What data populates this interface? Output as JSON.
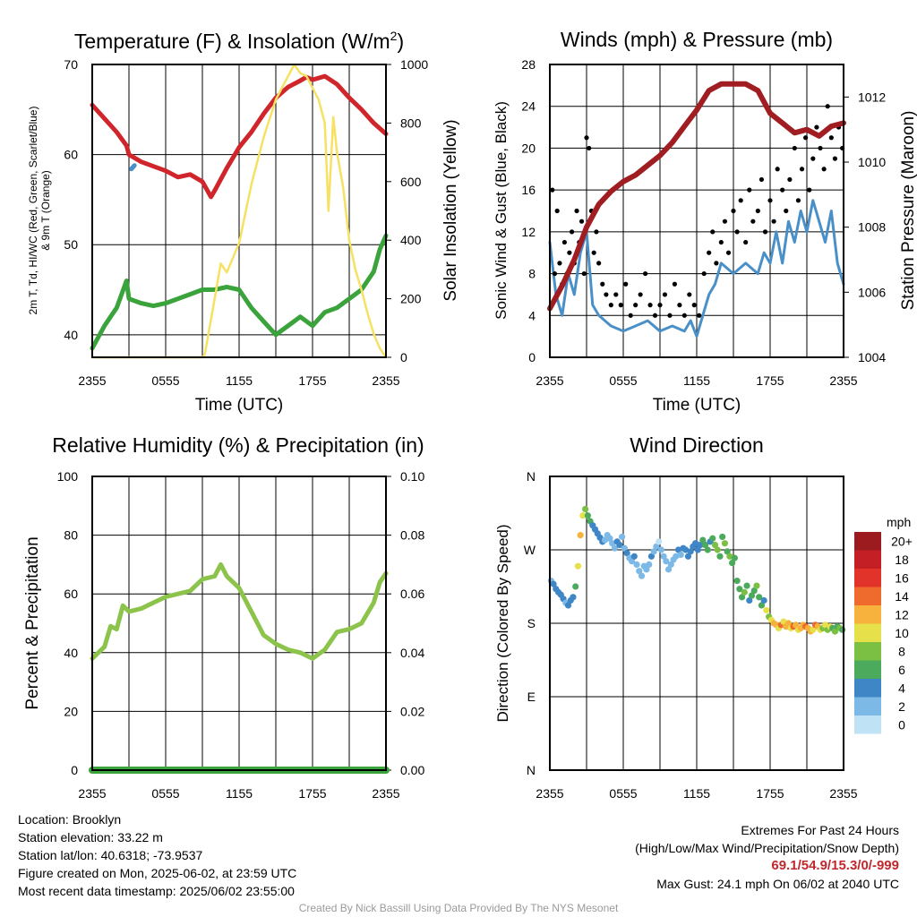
{
  "panels": {
    "temperature": {
      "title_main": "Temperature (F) & Insolation (W/m",
      "title_sup": "2",
      "title_end": ")",
      "ylabel_line1": "2m T, Td, HI/WC (Red, Green, Scarlet/Blue)",
      "ylabel_line2": "& 9m T (Orange)",
      "y2label": "Solar Insolation (Yellow)",
      "xlabel": "Time (UTC)"
    },
    "winds": {
      "title": "Winds (mph) & Pressure (mb)",
      "ylabel": "Sonic Wind & Gust (Blue, Black)",
      "y2label": "Station Pressure (Maroon)",
      "xlabel": "Time (UTC)"
    },
    "humidity": {
      "title": "Relative Humidity (%) & Precipitation (in)",
      "ylabel": "Percent & Precipitation"
    },
    "direction": {
      "title": "Wind Direction",
      "ylabel": "Direction (Colored By Speed)",
      "colorbar_title": "mph"
    }
  },
  "footer": {
    "location": "Location: Brooklyn",
    "elevation": "Station elevation: 33.22 m",
    "latlon": "Station lat/lon: 40.6318; -73.9537",
    "created": "Figure created on Mon, 2025-06-02, at 23:59 UTC",
    "recent": "Most recent data timestamp: 2025/06/02 23:55:00",
    "extremes_title": "Extremes For Past 24 Hours",
    "extremes_sub": "(High/Low/Max Wind/Precipitation/Snow Depth)",
    "extremes_values": "69.1/54.9/15.3/0/-999",
    "max_gust": "Max Gust: 24.1 mph On 06/02 at 2040 UTC",
    "credit": "Created By Nick Bassill Using Data Provided By The NYS Mesonet"
  },
  "colors": {
    "temperature": "#d0252b",
    "dewpoint": "#3aa33c",
    "heat_index_wc": "#4a90c8",
    "insolation": "#f7e163",
    "wind": "#4a90c8",
    "gust": "#000000",
    "pressure": "#a01e22",
    "humidity": "#8cc34a",
    "precip": "#3aa33c"
  },
  "chart_data": [
    {
      "id": "temperature",
      "type": "line",
      "x_ticks": [
        "2355",
        "0555",
        "1155",
        "1755",
        "2355"
      ],
      "x_hours": [
        0,
        24
      ],
      "ylim": [
        37.5,
        70
      ],
      "y_ticks": [
        40,
        50,
        60,
        70
      ],
      "y2lim": [
        0,
        1000
      ],
      "y2_ticks": [
        0,
        200,
        400,
        600,
        800,
        1000
      ],
      "series": [
        {
          "key": "temperature",
          "axis": "left",
          "x": [
            0,
            1,
            2,
            2.8,
            3,
            4,
            5,
            6,
            7,
            8,
            9,
            9.7,
            10,
            11,
            12,
            13,
            14,
            15,
            16,
            17,
            17.5,
            18,
            19,
            20,
            21,
            22,
            23,
            24
          ],
          "y": [
            65.5,
            64,
            62.5,
            61,
            60,
            59.2,
            58.7,
            58.2,
            57.5,
            57.8,
            57,
            55.3,
            56,
            58.5,
            60.8,
            62.5,
            64.5,
            66.3,
            67.5,
            68.2,
            68.6,
            68.3,
            68.7,
            67.8,
            66.3,
            65,
            63.5,
            62.3
          ]
        },
        {
          "key": "heat_index_wc",
          "axis": "left",
          "x": [
            3.2,
            3.45
          ],
          "y": [
            58.4,
            58.8
          ]
        },
        {
          "key": "dewpoint",
          "axis": "left",
          "x": [
            0,
            1,
            2,
            2.8,
            3,
            4,
            5,
            6,
            7,
            8,
            9,
            10,
            11,
            12,
            13,
            14,
            15,
            16,
            17,
            18,
            19,
            20,
            21,
            22,
            23,
            23.5,
            24
          ],
          "y": [
            38.5,
            41,
            43,
            46,
            44,
            43.5,
            43.2,
            43.5,
            44,
            44.5,
            45,
            45,
            45.3,
            45,
            43,
            41.5,
            40,
            41,
            42,
            41,
            42.5,
            43,
            44,
            45,
            47,
            49.5,
            51
          ]
        },
        {
          "key": "insolation",
          "axis": "right",
          "x": [
            0,
            1,
            2,
            3,
            4,
            5,
            6,
            7,
            8,
            9,
            9.2,
            10,
            10.5,
            11,
            12,
            13,
            14,
            15,
            15.5,
            16,
            16.5,
            17,
            17.5,
            18,
            18.5,
            19,
            19.3,
            19.7,
            20,
            20.5,
            21,
            21.5,
            22,
            22.5,
            23,
            23.5,
            24
          ],
          "y": [
            0,
            0,
            0,
            0,
            0,
            0,
            0,
            0,
            0,
            0,
            10,
            200,
            320,
            290,
            390,
            590,
            750,
            880,
            920,
            960,
            1000,
            970,
            960,
            920,
            880,
            800,
            500,
            820,
            700,
            580,
            400,
            300,
            230,
            150,
            80,
            30,
            0
          ]
        }
      ]
    },
    {
      "id": "winds",
      "type": "line",
      "x_ticks": [
        "2355",
        "0555",
        "1155",
        "1755",
        "2355"
      ],
      "x_hours": [
        0,
        24
      ],
      "ylim": [
        0,
        28
      ],
      "y_ticks": [
        0,
        4,
        8,
        12,
        16,
        20,
        24,
        28
      ],
      "y2lim": [
        1004,
        1013
      ],
      "y2_ticks": [
        1004,
        1006,
        1008,
        1010,
        1012
      ],
      "series": [
        {
          "key": "wind",
          "axis": "left",
          "x": [
            0,
            0.5,
            1,
            1.5,
            2,
            2.5,
            3,
            3.5,
            4,
            5,
            6,
            7,
            8,
            9,
            10,
            11,
            11.5,
            12,
            12.5,
            13,
            13.5,
            14,
            15,
            16,
            17,
            17.5,
            18,
            18.5,
            19,
            19.5,
            20,
            20.5,
            21,
            21.5,
            22,
            22.5,
            23,
            23.5,
            24
          ],
          "y": [
            11,
            6,
            4,
            8,
            6,
            10,
            12,
            5,
            4,
            3,
            2.5,
            3,
            3.5,
            2.5,
            3,
            2.5,
            3.5,
            2,
            4,
            6,
            7,
            9,
            8,
            9,
            8,
            10,
            9,
            12,
            9,
            13,
            11,
            14,
            12,
            15,
            13,
            11,
            14,
            9,
            7
          ]
        },
        {
          "key": "gust",
          "axis": "left",
          "mode": "dots",
          "x": [
            0.2,
            0.4,
            0.6,
            0.8,
            1.0,
            1.2,
            1.4,
            1.6,
            1.8,
            2.0,
            2.2,
            2.4,
            2.6,
            2.8,
            3.0,
            3.2,
            3.4,
            3.6,
            3.8,
            4.0,
            4.3,
            4.6,
            5.0,
            5.4,
            5.8,
            6.2,
            6.6,
            7.0,
            7.4,
            7.8,
            8.2,
            8.6,
            9.0,
            9.4,
            9.8,
            10.2,
            10.6,
            11.0,
            11.4,
            11.8,
            12.2,
            12.6,
            13.0,
            13.3,
            13.6,
            14.0,
            14.3,
            14.6,
            15.0,
            15.3,
            15.6,
            16.0,
            16.3,
            16.6,
            17.0,
            17.3,
            17.6,
            18.0,
            18.3,
            18.6,
            19.0,
            19.3,
            19.6,
            20.0,
            20.3,
            20.6,
            20.9,
            21.2,
            21.5,
            21.8,
            22.1,
            22.4,
            22.7,
            23.0,
            23.3,
            23.6,
            23.9
          ],
          "y": [
            16,
            8,
            14,
            9,
            7,
            11,
            8,
            10,
            12,
            9,
            14,
            11,
            13,
            8,
            21,
            20,
            14,
            10,
            12,
            9,
            7,
            6,
            5,
            6,
            5,
            7,
            4,
            5,
            6,
            8,
            5,
            4,
            5,
            6,
            4,
            7,
            5,
            4,
            6,
            5,
            4,
            8,
            10,
            12,
            9,
            11,
            13,
            10,
            14,
            12,
            15,
            11,
            16,
            13,
            14,
            17,
            12,
            15,
            13,
            18,
            16,
            14,
            17,
            20,
            15,
            18,
            21,
            16,
            19,
            22,
            20,
            18,
            24,
            21,
            19,
            22,
            20
          ]
        },
        {
          "key": "pressure",
          "axis": "right",
          "x": [
            0,
            1,
            2,
            3,
            4,
            5,
            6,
            7,
            8,
            9,
            10,
            11,
            12,
            13,
            14,
            15,
            16,
            17,
            18,
            19,
            20,
            21,
            22,
            23,
            24
          ],
          "y": [
            1005.5,
            1006.2,
            1007,
            1008,
            1008.7,
            1009.1,
            1009.4,
            1009.6,
            1009.9,
            1010.2,
            1010.6,
            1011.1,
            1011.6,
            1012.2,
            1012.4,
            1012.4,
            1012.4,
            1012.2,
            1011.5,
            1011.2,
            1010.9,
            1011.0,
            1010.8,
            1011.1,
            1011.2
          ]
        }
      ]
    },
    {
      "id": "humidity",
      "type": "line",
      "x_ticks": [
        "2355",
        "0555",
        "1155",
        "1755",
        "2355"
      ],
      "x_hours": [
        0,
        24
      ],
      "ylim": [
        0,
        100
      ],
      "y_ticks": [
        0,
        20,
        40,
        60,
        80,
        100
      ],
      "y2lim": [
        0,
        0.1
      ],
      "y2_ticks": [
        "0.00",
        "0.02",
        "0.04",
        "0.06",
        "0.08",
        "0.10"
      ],
      "series": [
        {
          "key": "humidity",
          "axis": "left",
          "x": [
            0,
            1,
            1.5,
            2,
            2.5,
            3,
            4,
            5,
            6,
            7,
            8,
            9,
            10,
            10.5,
            11,
            12,
            13,
            14,
            15,
            16,
            17,
            18,
            19,
            20,
            21,
            22,
            23,
            23.5,
            24
          ],
          "y": [
            38,
            42,
            49,
            48,
            56,
            54,
            55,
            57,
            59,
            60,
            61,
            65,
            66,
            70,
            66,
            62,
            54,
            46,
            43,
            41,
            40,
            38,
            41,
            47,
            48,
            50,
            57,
            64,
            67
          ]
        },
        {
          "key": "precip",
          "axis": "right",
          "x": [
            0,
            24
          ],
          "y": [
            0,
            0
          ]
        }
      ]
    },
    {
      "id": "direction",
      "type": "scatter",
      "x_ticks": [
        "2355",
        "0555",
        "1155",
        "1755",
        "2355"
      ],
      "x_hours": [
        0,
        24
      ],
      "y_labels": [
        "N",
        "E",
        "S",
        "W",
        "N"
      ],
      "ylim": [
        0,
        360
      ],
      "colorbar": {
        "labels": [
          "0",
          "2",
          "4",
          "6",
          "8",
          "10",
          "12",
          "14",
          "16",
          "18",
          "20+"
        ],
        "colors": [
          "#bfe3f5",
          "#7cb9e6",
          "#3f86c6",
          "#4caa5c",
          "#7cc043",
          "#e6e04a",
          "#f6b23c",
          "#ef6a2d",
          "#e2332a",
          "#c41f24",
          "#9b1b1f"
        ]
      },
      "points": {
        "x": [
          0.1,
          0.3,
          0.5,
          0.7,
          0.9,
          1.1,
          1.3,
          1.5,
          1.7,
          1.9,
          2.1,
          2.3,
          2.5,
          2.7,
          2.9,
          3.1,
          3.3,
          3.5,
          3.7,
          3.9,
          4.1,
          4.3,
          4.5,
          4.7,
          4.9,
          5.1,
          5.3,
          5.5,
          5.7,
          5.9,
          6.1,
          6.3,
          6.5,
          6.7,
          6.9,
          7.1,
          7.3,
          7.5,
          7.7,
          7.9,
          8.1,
          8.3,
          8.5,
          8.7,
          8.9,
          9.1,
          9.3,
          9.5,
          9.7,
          9.9,
          10.1,
          10.3,
          10.5,
          10.7,
          10.9,
          11.1,
          11.3,
          11.5,
          11.7,
          11.9,
          12.1,
          12.3,
          12.5,
          12.7,
          12.9,
          13.1,
          13.3,
          13.5,
          13.7,
          13.9,
          14.1,
          14.3,
          14.5,
          14.7,
          14.9,
          15.1,
          15.3,
          15.5,
          15.7,
          15.9,
          16.1,
          16.3,
          16.5,
          16.7,
          16.9,
          17.1,
          17.3,
          17.5,
          17.7,
          17.9,
          18.1,
          18.3,
          18.5,
          18.7,
          18.9,
          19.1,
          19.3,
          19.5,
          19.7,
          19.9,
          20.1,
          20.3,
          20.5,
          20.7,
          20.9,
          21.1,
          21.3,
          21.5,
          21.7,
          21.9,
          22.1,
          22.3,
          22.5,
          22.7,
          22.9,
          23.1,
          23.3,
          23.5,
          23.7,
          23.9
        ],
        "y": [
          232,
          228,
          222,
          218,
          215,
          210,
          205,
          202,
          208,
          212,
          225,
          250,
          288,
          312,
          320,
          312,
          305,
          300,
          295,
          290,
          285,
          280,
          282,
          288,
          284,
          278,
          272,
          280,
          276,
          286,
          272,
          266,
          260,
          256,
          262,
          252,
          244,
          238,
          250,
          246,
          252,
          262,
          268,
          274,
          280,
          270,
          262,
          256,
          246,
          252,
          258,
          262,
          270,
          264,
          272,
          270,
          262,
          268,
          274,
          278,
          270,
          276,
          282,
          276,
          270,
          280,
          284,
          276,
          270,
          262,
          286,
          278,
          268,
          262,
          254,
          260,
          232,
          222,
          212,
          218,
          226,
          208,
          214,
          220,
          226,
          212,
          202,
          208,
          196,
          188,
          184,
          180,
          178,
          174,
          178,
          182,
          176,
          180,
          174,
          176,
          178,
          172,
          174,
          178,
          176,
          174,
          170,
          172,
          178,
          176,
          172,
          174,
          178,
          172,
          176,
          174,
          170,
          176,
          174,
          172
        ],
        "speed": [
          3,
          4,
          4,
          4,
          4,
          4,
          3,
          4,
          5,
          5,
          6,
          10,
          12,
          10,
          8,
          7,
          6,
          5,
          4,
          4,
          4,
          4,
          3,
          3,
          3,
          3,
          3,
          4,
          4,
          3,
          3,
          4,
          3,
          3,
          4,
          2,
          3,
          3,
          3,
          2,
          2,
          4,
          3,
          3,
          1,
          3,
          2,
          2,
          3,
          2,
          3,
          3,
          4,
          3,
          4,
          5,
          4,
          4,
          5,
          5,
          4,
          5,
          6,
          7,
          6,
          5,
          6,
          8,
          9,
          7,
          6,
          8,
          6,
          9,
          7,
          6,
          6,
          7,
          6,
          8,
          7,
          5,
          6,
          7,
          8,
          7,
          6,
          5,
          11,
          9,
          11,
          13,
          12,
          10,
          14,
          11,
          12,
          13,
          10,
          14,
          12,
          11,
          13,
          12,
          15,
          13,
          12,
          11,
          14,
          12,
          10,
          9,
          11,
          8,
          10,
          7,
          8,
          6,
          9,
          7
        ]
      }
    }
  ]
}
